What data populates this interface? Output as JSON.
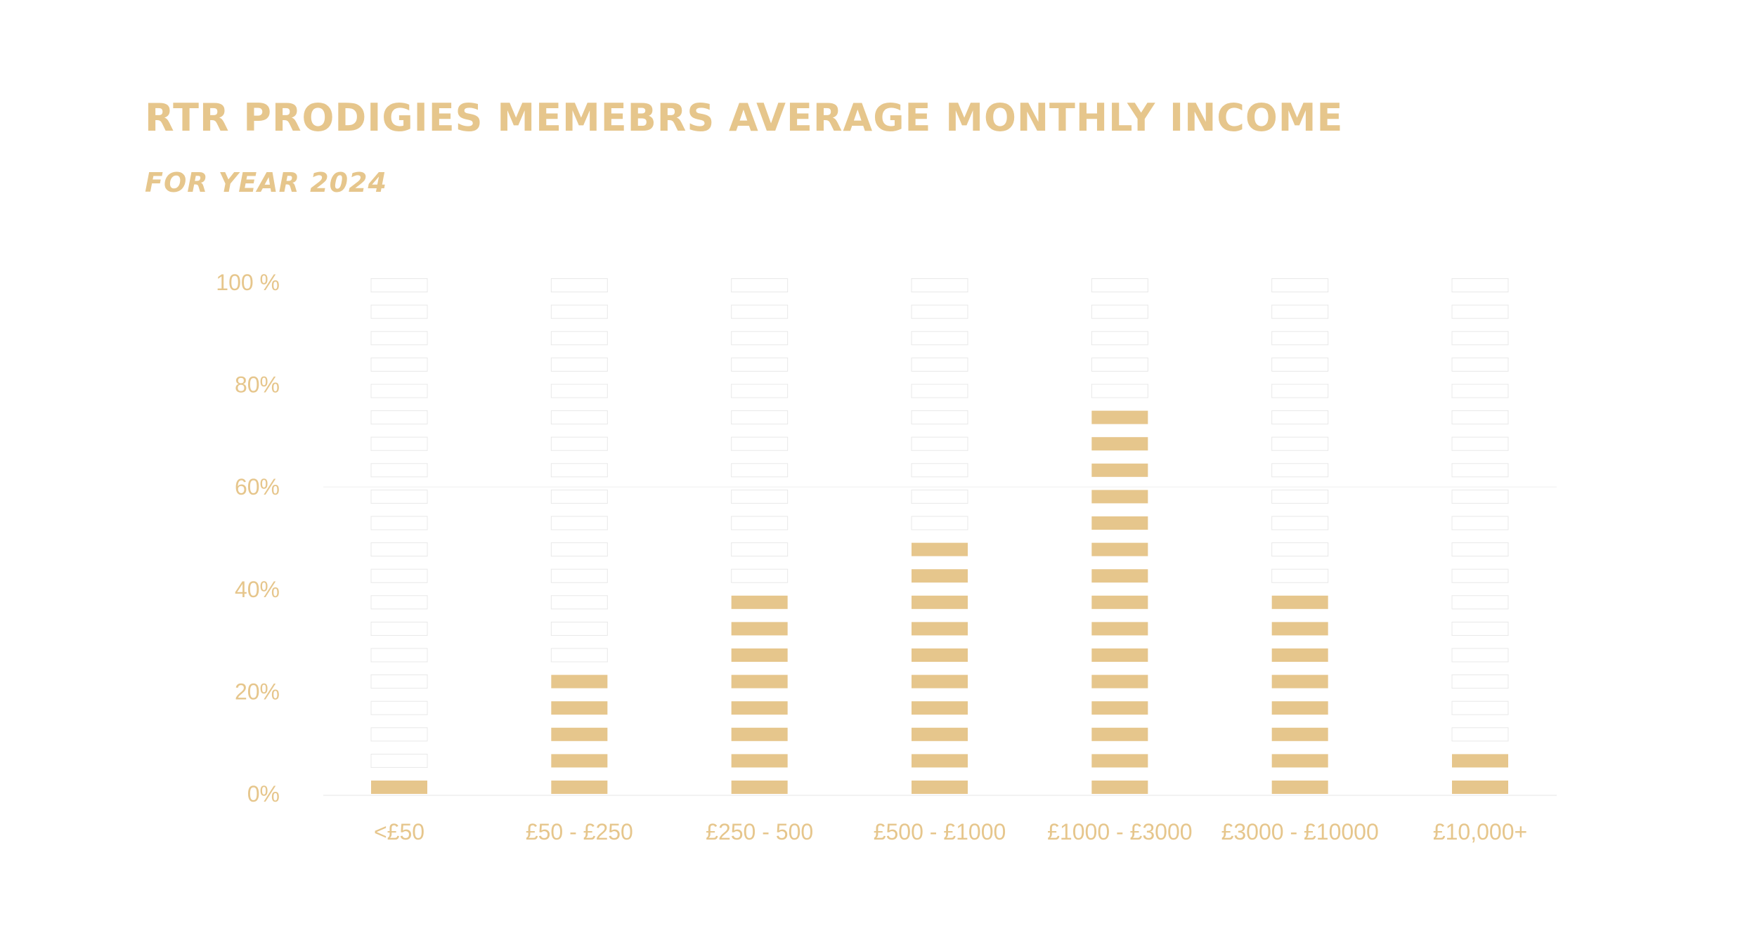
{
  "colors": {
    "accent": "#E6C68C",
    "empty_stroke": "#E8E8E8",
    "empty_fill": "#FFFFFF",
    "baseline": "#F2F2F2"
  },
  "chart_data": {
    "type": "bar",
    "title": "RTR PRODIGIES MEMEBRS AVERAGE MONTHLY INCOME",
    "subtitle": "FOR YEAR 2024",
    "style": "segmented pictograph bars",
    "categories": [
      "<£50",
      "£50 - £250",
      "£250 - 500",
      "£500 - £1000",
      "£1000 - £3000",
      "£3000 - £10000",
      "£10,000+"
    ],
    "values": [
      2,
      27,
      38,
      48,
      75,
      38,
      12
    ],
    "y_tick_labels": [
      "0%",
      "20%",
      "40%",
      "60%",
      "80%",
      "100 %"
    ],
    "y_ticks": [
      0,
      20,
      40,
      60,
      80,
      100
    ],
    "ylim": [
      0,
      100
    ],
    "grid": false,
    "legend": "none"
  }
}
